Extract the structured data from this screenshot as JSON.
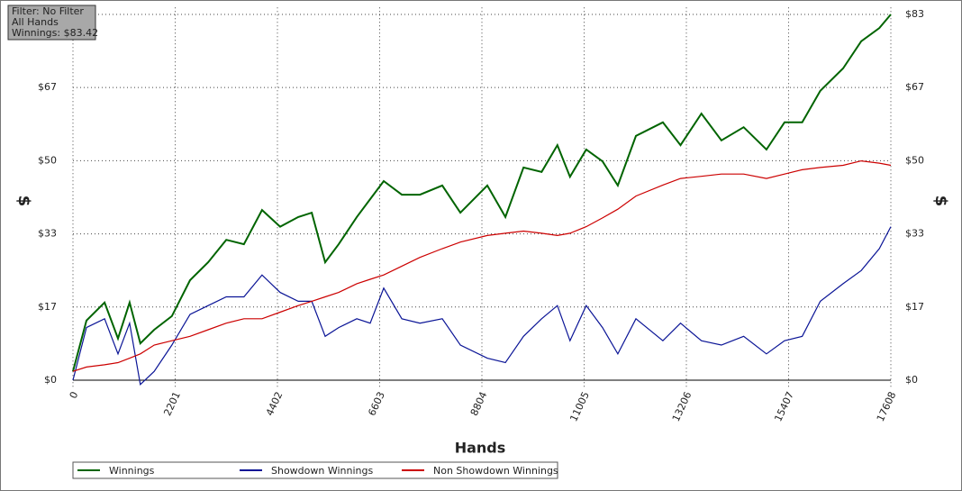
{
  "info_box": {
    "lines": [
      "Filter: No Filter",
      "All Hands",
      "Winnings: $83.42"
    ]
  },
  "chart_data": {
    "type": "line",
    "x_label": "Hands",
    "y_label": "$",
    "y2_label": "$",
    "grid": true,
    "legend": "bottom",
    "xlim": [
      0,
      17608
    ],
    "xticks": [
      0,
      2201,
      4402,
      6603,
      8804,
      11005,
      13206,
      15407,
      17608
    ],
    "ylim": [
      -2,
      85
    ],
    "yticks": [
      {
        "value": 0,
        "label": "$0"
      },
      {
        "value": 16.68,
        "label": "$17"
      },
      {
        "value": 33.37,
        "label": "$33"
      },
      {
        "value": 50.05,
        "label": "$50"
      },
      {
        "value": 66.74,
        "label": "$67"
      },
      {
        "value": 83.42,
        "label": "$83"
      }
    ],
    "x": [
      0,
      290,
      680,
      970,
      1220,
      1450,
      1750,
      2130,
      2520,
      2910,
      3300,
      3680,
      4070,
      4460,
      4850,
      5140,
      5430,
      5720,
      6110,
      6400,
      6690,
      7080,
      7470,
      7950,
      8340,
      8920,
      9310,
      9700,
      10090,
      10430,
      10700,
      11050,
      11400,
      11730,
      12120,
      12700,
      13080,
      13530,
      13960,
      14440,
      14930,
      15320,
      15700,
      16090,
      16580,
      16970,
      17360,
      17608
    ],
    "series": [
      {
        "name": "Winnings",
        "color": "#006400",
        "values": [
          2,
          13.6,
          17.7,
          9.5,
          17.7,
          8.4,
          11.5,
          14.6,
          22.8,
          26.9,
          32,
          31,
          38.8,
          35,
          37.2,
          38.2,
          26.9,
          31,
          37.2,
          41.3,
          45.4,
          42.3,
          42.3,
          44.4,
          38.2,
          44.4,
          37.2,
          48.5,
          47.5,
          53.6,
          46.4,
          52.6,
          49.9,
          44.4,
          55.7,
          58.8,
          53.6,
          60.8,
          54.7,
          57.7,
          52.6,
          58.8,
          58.8,
          66,
          71.1,
          77.3,
          80.3,
          83.42
        ]
      },
      {
        "name": "Showdown Winnings",
        "color": "#0a1496",
        "values": [
          0,
          12,
          14,
          6,
          13,
          -1,
          2,
          8,
          15,
          17,
          19,
          19,
          24,
          20,
          18,
          18,
          10,
          12,
          14,
          13,
          21,
          14,
          13,
          14,
          8,
          5,
          4,
          10,
          14,
          17,
          9,
          17,
          12,
          6,
          14,
          9,
          13,
          9,
          8,
          10,
          6,
          9,
          10,
          18,
          22,
          25,
          30,
          35
        ]
      },
      {
        "name": "Non Showdown Winnings",
        "color": "#cc0000",
        "values": [
          2,
          3,
          3.5,
          4,
          5,
          6,
          8,
          9,
          10,
          11.5,
          13,
          14,
          14,
          15.5,
          17,
          18,
          19,
          20,
          22,
          23,
          24,
          26,
          28,
          30,
          31.5,
          33,
          33.5,
          34,
          33.5,
          33,
          33.5,
          35,
          37,
          39,
          42,
          44.5,
          46,
          46.5,
          47,
          47,
          46,
          47,
          48,
          48.5,
          49,
          50,
          49.5,
          49
        ]
      }
    ]
  }
}
